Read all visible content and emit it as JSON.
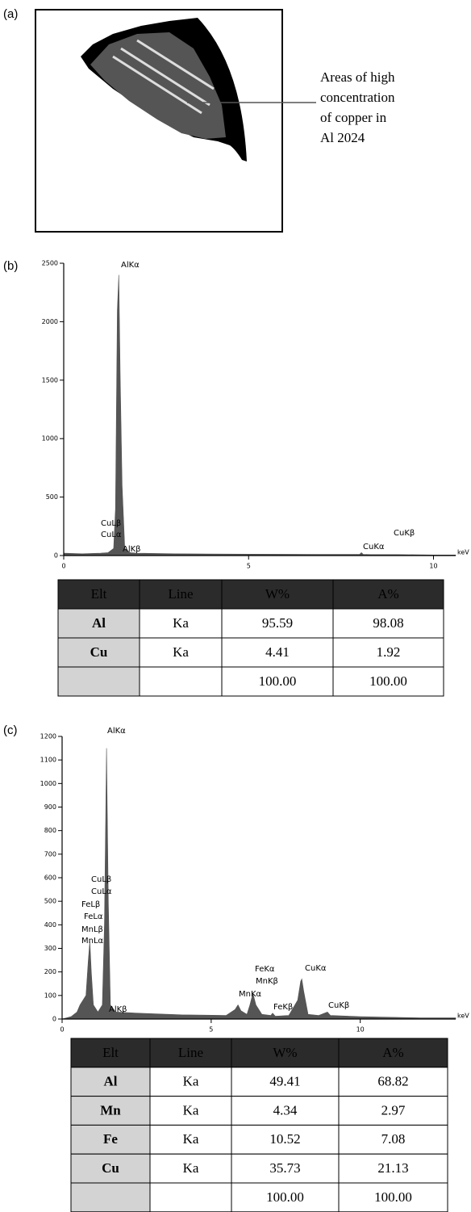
{
  "panel_a": {
    "label": "(a)",
    "annotation": [
      "Areas of high",
      "concentration",
      "of copper in",
      "Al 2024"
    ]
  },
  "chart_data": [
    {
      "type": "area",
      "label": "(b)",
      "x": [
        0,
        0.5,
        1.0,
        1.2,
        1.35,
        1.4,
        1.45,
        1.49,
        1.53,
        1.58,
        1.65,
        1.8,
        2.0,
        3,
        5,
        7,
        8.0,
        8.05,
        8.1,
        8.3,
        9,
        10,
        10.6
      ],
      "values": [
        20,
        15,
        20,
        25,
        60,
        400,
        2100,
        2400,
        1500,
        600,
        60,
        25,
        20,
        15,
        12,
        10,
        10,
        25,
        10,
        8,
        8,
        5,
        5
      ],
      "color": "#555555",
      "xlim": [
        0,
        10.6
      ],
      "ylim": [
        0,
        2500
      ],
      "xticks": [
        0,
        5,
        10
      ],
      "yticks": [
        0,
        500,
        1000,
        1500,
        2000,
        2500
      ],
      "xlabel": "keV",
      "annotations": [
        "AlKα",
        "CuLβ",
        "CuLα",
        "AlKβ",
        "CuKα",
        "CuKβ"
      ]
    },
    {
      "type": "area",
      "label": "(c)",
      "x": [
        0,
        0.3,
        0.5,
        0.6,
        0.7,
        0.8,
        0.88,
        0.93,
        0.98,
        1.05,
        1.2,
        1.35,
        1.42,
        1.49,
        1.55,
        1.62,
        1.8,
        2.5,
        4,
        5.5,
        5.8,
        5.9,
        6.0,
        6.2,
        6.3,
        6.4,
        6.5,
        6.7,
        7.0,
        7.06,
        7.15,
        7.6,
        7.9,
        8.0,
        8.04,
        8.1,
        8.25,
        8.6,
        8.9,
        9.0,
        10,
        12,
        13.2
      ],
      "values": [
        0,
        10,
        30,
        60,
        80,
        100,
        250,
        330,
        200,
        60,
        30,
        60,
        400,
        1150,
        500,
        60,
        30,
        25,
        18,
        15,
        40,
        60,
        35,
        20,
        60,
        110,
        60,
        20,
        15,
        25,
        12,
        15,
        80,
        160,
        170,
        120,
        20,
        15,
        30,
        15,
        10,
        5,
        5
      ],
      "color": "#555555",
      "xlim": [
        0,
        13.2
      ],
      "ylim": [
        0,
        1200
      ],
      "xticks": [
        0,
        5,
        10
      ],
      "yticks": [
        0,
        100,
        200,
        300,
        400,
        500,
        600,
        700,
        800,
        900,
        1000,
        1100,
        1200
      ],
      "xlabel": "keV",
      "annotations": [
        "AlKα",
        "CuLβ",
        "CuLα",
        "FeLβ",
        "FeLα",
        "MnLβ",
        "MnLα",
        "FeKα",
        "MnKβ",
        "MnKα",
        "FeKβ",
        "CuKα",
        "CuKβ",
        "AlKβ"
      ]
    }
  ],
  "table_b": {
    "header": [
      "Elt",
      "Line",
      "W%",
      "A%"
    ],
    "rows": [
      [
        "Al",
        "Ka",
        "95.59",
        "98.08"
      ],
      [
        "Cu",
        "Ka",
        "4.41",
        "1.92"
      ],
      [
        null,
        null,
        "100.00",
        "100.00"
      ]
    ]
  },
  "table_c": {
    "header": [
      "Elt",
      "Line",
      "W%",
      "A%"
    ],
    "rows": [
      [
        "Al",
        "Ka",
        "49.41",
        "68.82"
      ],
      [
        "Mn",
        "Ka",
        "4.34",
        "2.97"
      ],
      [
        "Fe",
        "Ka",
        "10.52",
        "7.08"
      ],
      [
        "Cu",
        "Ka",
        "35.73",
        "21.13"
      ],
      [
        null,
        null,
        "100.00",
        "100.00"
      ]
    ]
  }
}
